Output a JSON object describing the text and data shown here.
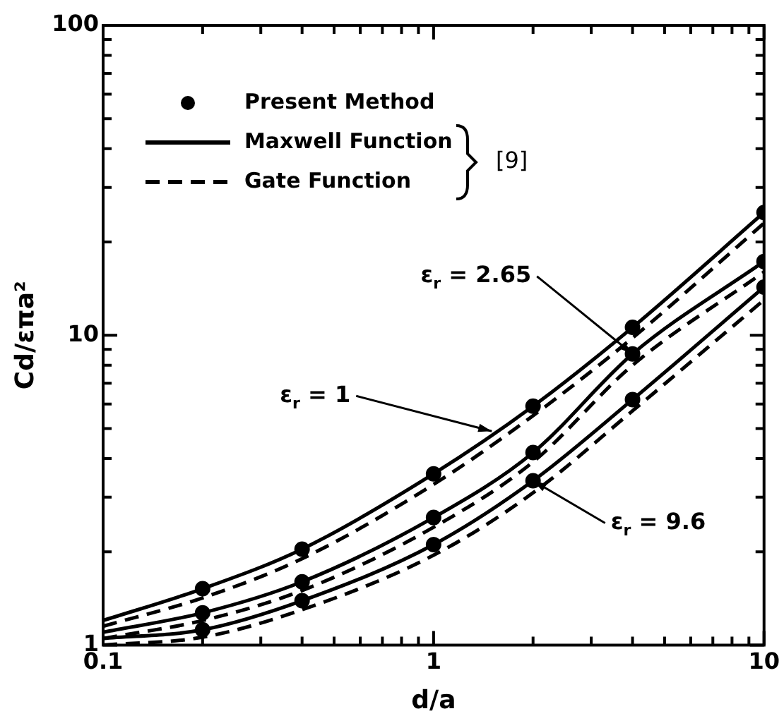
{
  "chart_data": {
    "type": "line",
    "xlabel": "d/a",
    "ylabel": "Cd/επa²",
    "log": "xy",
    "grid": false,
    "legend": "top left",
    "xlim": [
      0.1,
      10
    ],
    "ylim": [
      1,
      100
    ],
    "xticks": [
      0.1,
      {
        "value": 0.2,
        "label": null
      },
      {
        "value": 0.3,
        "label": null
      },
      {
        "value": 0.4,
        "label": null
      },
      {
        "value": 0.5,
        "label": null
      },
      {
        "value": 0.6,
        "label": null
      },
      {
        "value": 0.7,
        "label": null
      },
      {
        "value": 0.8,
        "label": null
      },
      {
        "value": 0.9,
        "label": null
      },
      1,
      {
        "value": 2,
        "label": null
      },
      {
        "value": 3,
        "label": null
      },
      {
        "value": 4,
        "label": null
      },
      {
        "value": 5,
        "label": null
      },
      {
        "value": 6,
        "label": null
      },
      {
        "value": 7,
        "label": null
      },
      {
        "value": 8,
        "label": null
      },
      {
        "value": 9,
        "label": null
      },
      10
    ],
    "yticks": [
      1,
      {
        "value": 2,
        "label": null
      },
      {
        "value": 3,
        "label": null
      },
      {
        "value": 4,
        "label": null
      },
      {
        "value": 5,
        "label": null
      },
      {
        "value": 6,
        "label": null
      },
      {
        "value": 7,
        "label": null
      },
      {
        "value": 8,
        "label": null
      },
      {
        "value": 9,
        "label": null
      },
      10,
      {
        "value": 20,
        "label": null
      },
      {
        "value": 30,
        "label": null
      },
      {
        "value": 40,
        "label": null
      },
      {
        "value": 50,
        "label": null
      },
      {
        "value": 60,
        "label": null
      },
      {
        "value": 70,
        "label": null
      },
      {
        "value": 80,
        "label": null
      },
      {
        "value": 90,
        "label": null
      },
      100
    ],
    "series": [
      {
        "name": "Present Method",
        "type": "scatter",
        "marker": "circle",
        "color": "#000000",
        "x": [
          0.2,
          0.4,
          1,
          2,
          4,
          10
        ],
        "values": [
          1.52,
          2.04,
          3.57,
          5.9,
          10.6,
          24.9
        ]
      },
      {
        "type": "scatter",
        "marker": "circle",
        "color": "#000000",
        "x": [
          0.2,
          0.4,
          1,
          2,
          4,
          10
        ],
        "values": [
          1.27,
          1.6,
          2.58,
          4.18,
          8.7,
          17.3
        ]
      },
      {
        "type": "scatter",
        "marker": "circle",
        "color": "#000000",
        "x": [
          0.2,
          0.4,
          1,
          2,
          4,
          10
        ],
        "values": [
          1.12,
          1.39,
          2.11,
          3.39,
          6.2,
          14.3
        ]
      },
      {
        "name": "Maxwell Function",
        "type": "line",
        "line_style": "solid",
        "marker": "none",
        "color": "#000000",
        "x": [
          0.1,
          0.2,
          0.4,
          1,
          2,
          4,
          10
        ],
        "values": [
          1.2,
          1.52,
          2.04,
          3.57,
          5.9,
          10.6,
          24.9
        ]
      },
      {
        "type": "line",
        "line_style": "solid",
        "marker": "none",
        "color": "#000000",
        "x": [
          0.1,
          0.2,
          0.4,
          1,
          2,
          4,
          10
        ],
        "values": [
          1.1,
          1.27,
          1.6,
          2.58,
          4.18,
          8.7,
          17.3
        ]
      },
      {
        "type": "line",
        "line_style": "solid",
        "marker": "none",
        "color": "#000000",
        "x": [
          0.1,
          0.2,
          0.4,
          1,
          2,
          4,
          10
        ],
        "values": [
          1.05,
          1.12,
          1.39,
          2.11,
          3.39,
          6.2,
          14.3
        ]
      },
      {
        "name": "Gate Function",
        "type": "line",
        "line_style": "dashed",
        "marker": "none",
        "color": "#000000",
        "x": [
          0.1,
          0.2,
          0.4,
          1,
          2,
          4,
          10
        ],
        "values": [
          1.15,
          1.42,
          1.9,
          3.3,
          5.5,
          9.8,
          23
        ]
      },
      {
        "type": "line",
        "line_style": "dashed",
        "marker": "none",
        "color": "#000000",
        "x": [
          0.1,
          0.2,
          0.4,
          1,
          2,
          4,
          10
        ],
        "values": [
          1.05,
          1.2,
          1.5,
          2.4,
          3.9,
          8,
          16
        ]
      },
      {
        "type": "line",
        "line_style": "dashed",
        "marker": "none",
        "color": "#000000",
        "x": [
          0.1,
          0.2,
          0.4,
          1,
          2,
          4,
          10
        ],
        "values": [
          1,
          1.06,
          1.3,
          1.95,
          3.1,
          5.7,
          13
        ]
      }
    ],
    "annotations": [
      "[9]",
      {
        "text": "ε$_{r}$ = 2.65",
        "x": 4,
        "y": 8.7
      },
      {
        "text": "ε$_{r}$ = 1",
        "x": 1.5,
        "y": 4.9
      },
      {
        "text": "ε$_{r}$ = 9.6",
        "x": 2,
        "y": 3.39
      }
    ]
  }
}
